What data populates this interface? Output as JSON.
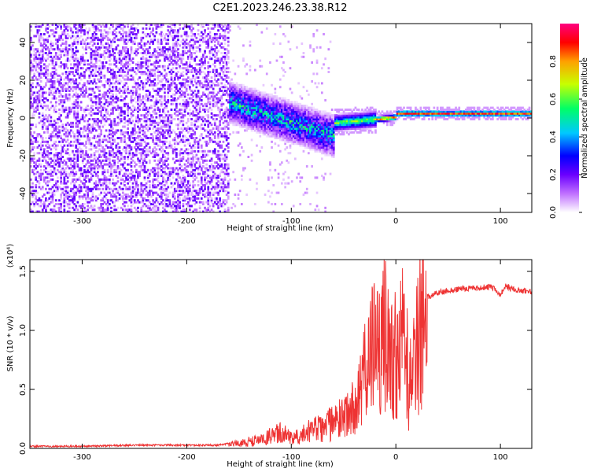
{
  "title": "C2E1.2023.246.23.38.R12",
  "chart_data": [
    {
      "type": "heatmap",
      "xlabel": "Height of straight line (km)",
      "ylabel": "Frequency (Hz)",
      "xlim": [
        -350,
        130
      ],
      "ylim": [
        -50,
        50
      ],
      "xticks": [
        -300,
        -200,
        -100,
        0,
        100
      ],
      "xtick_labels": [
        "-300",
        "-200",
        "-100",
        "0",
        "100"
      ],
      "yticks": [
        -40,
        -20,
        0,
        20,
        40
      ],
      "ytick_labels": [
        "-40",
        "-20",
        "0",
        "20",
        "40"
      ],
      "colorbar": {
        "label": "Normalized spectral amplitude",
        "range": [
          0,
          1
        ],
        "ticks": [
          0.0,
          0.2,
          0.4,
          0.6,
          0.8
        ],
        "tick_labels": [
          "0.0",
          "0.2",
          "0.4",
          "0.6",
          "0.8"
        ],
        "colormap": [
          "#ffffff",
          "#c070ff",
          "#6a00ff",
          "#0000ff",
          "#00c8ff",
          "#00ff66",
          "#c8ff00",
          "#ffa000",
          "#ff0000",
          "#ff0080"
        ]
      },
      "regions": [
        {
          "x": [
            -350,
            -160
          ],
          "freq_spread_hz": 50,
          "amplitude": 0.05,
          "description": "broadband noise"
        },
        {
          "x": [
            -160,
            -60
          ],
          "freq_center_hz": [
            8,
            -10
          ],
          "freq_spread_hz": 12,
          "amplitude": 0.35
        },
        {
          "x": [
            -60,
            130
          ],
          "freq_center_hz": [
            0,
            2
          ],
          "freq_spread_hz": 2,
          "amplitude": 0.9
        }
      ]
    },
    {
      "type": "line",
      "xlabel": "Height of straight line (km)",
      "ylabel": "SNR (10 * v/v)",
      "y_multiplier_label": "(x10⁴)",
      "xlim": [
        -350,
        130
      ],
      "ylim": [
        0,
        1.6
      ],
      "xticks": [
        -300,
        -200,
        -100,
        0,
        100
      ],
      "xtick_labels": [
        "-300",
        "-200",
        "-100",
        "0",
        "100"
      ],
      "yticks": [
        0.0,
        0.5,
        1.0,
        1.5
      ],
      "ytick_labels": [
        "0.0",
        "0.5",
        "1.0",
        "1.5"
      ],
      "line_color": "#ee3333",
      "series": [
        {
          "x": [
            -350,
            -300,
            -250,
            -200,
            -170,
            -150,
            -130,
            -120,
            -110,
            -100,
            -90,
            -80,
            -70,
            -60,
            -50,
            -40,
            -35,
            -30,
            -25,
            -20,
            -15,
            -10,
            -5,
            0,
            5,
            10,
            12,
            15,
            20,
            30,
            40,
            60,
            80,
            90,
            95,
            100,
            105,
            110,
            120,
            130
          ],
          "y": [
            0.01,
            0.01,
            0.02,
            0.02,
            0.02,
            0.05,
            0.08,
            0.12,
            0.15,
            0.12,
            0.14,
            0.18,
            0.2,
            0.25,
            0.3,
            0.4,
            0.5,
            0.7,
            0.9,
            1.0,
            1.1,
            1.1,
            1.0,
            0.9,
            1.0,
            1.2,
            0.35,
            0.9,
            1.1,
            1.28,
            1.32,
            1.35,
            1.36,
            1.37,
            1.35,
            1.3,
            1.38,
            1.35,
            1.34,
            1.33
          ]
        }
      ]
    }
  ]
}
